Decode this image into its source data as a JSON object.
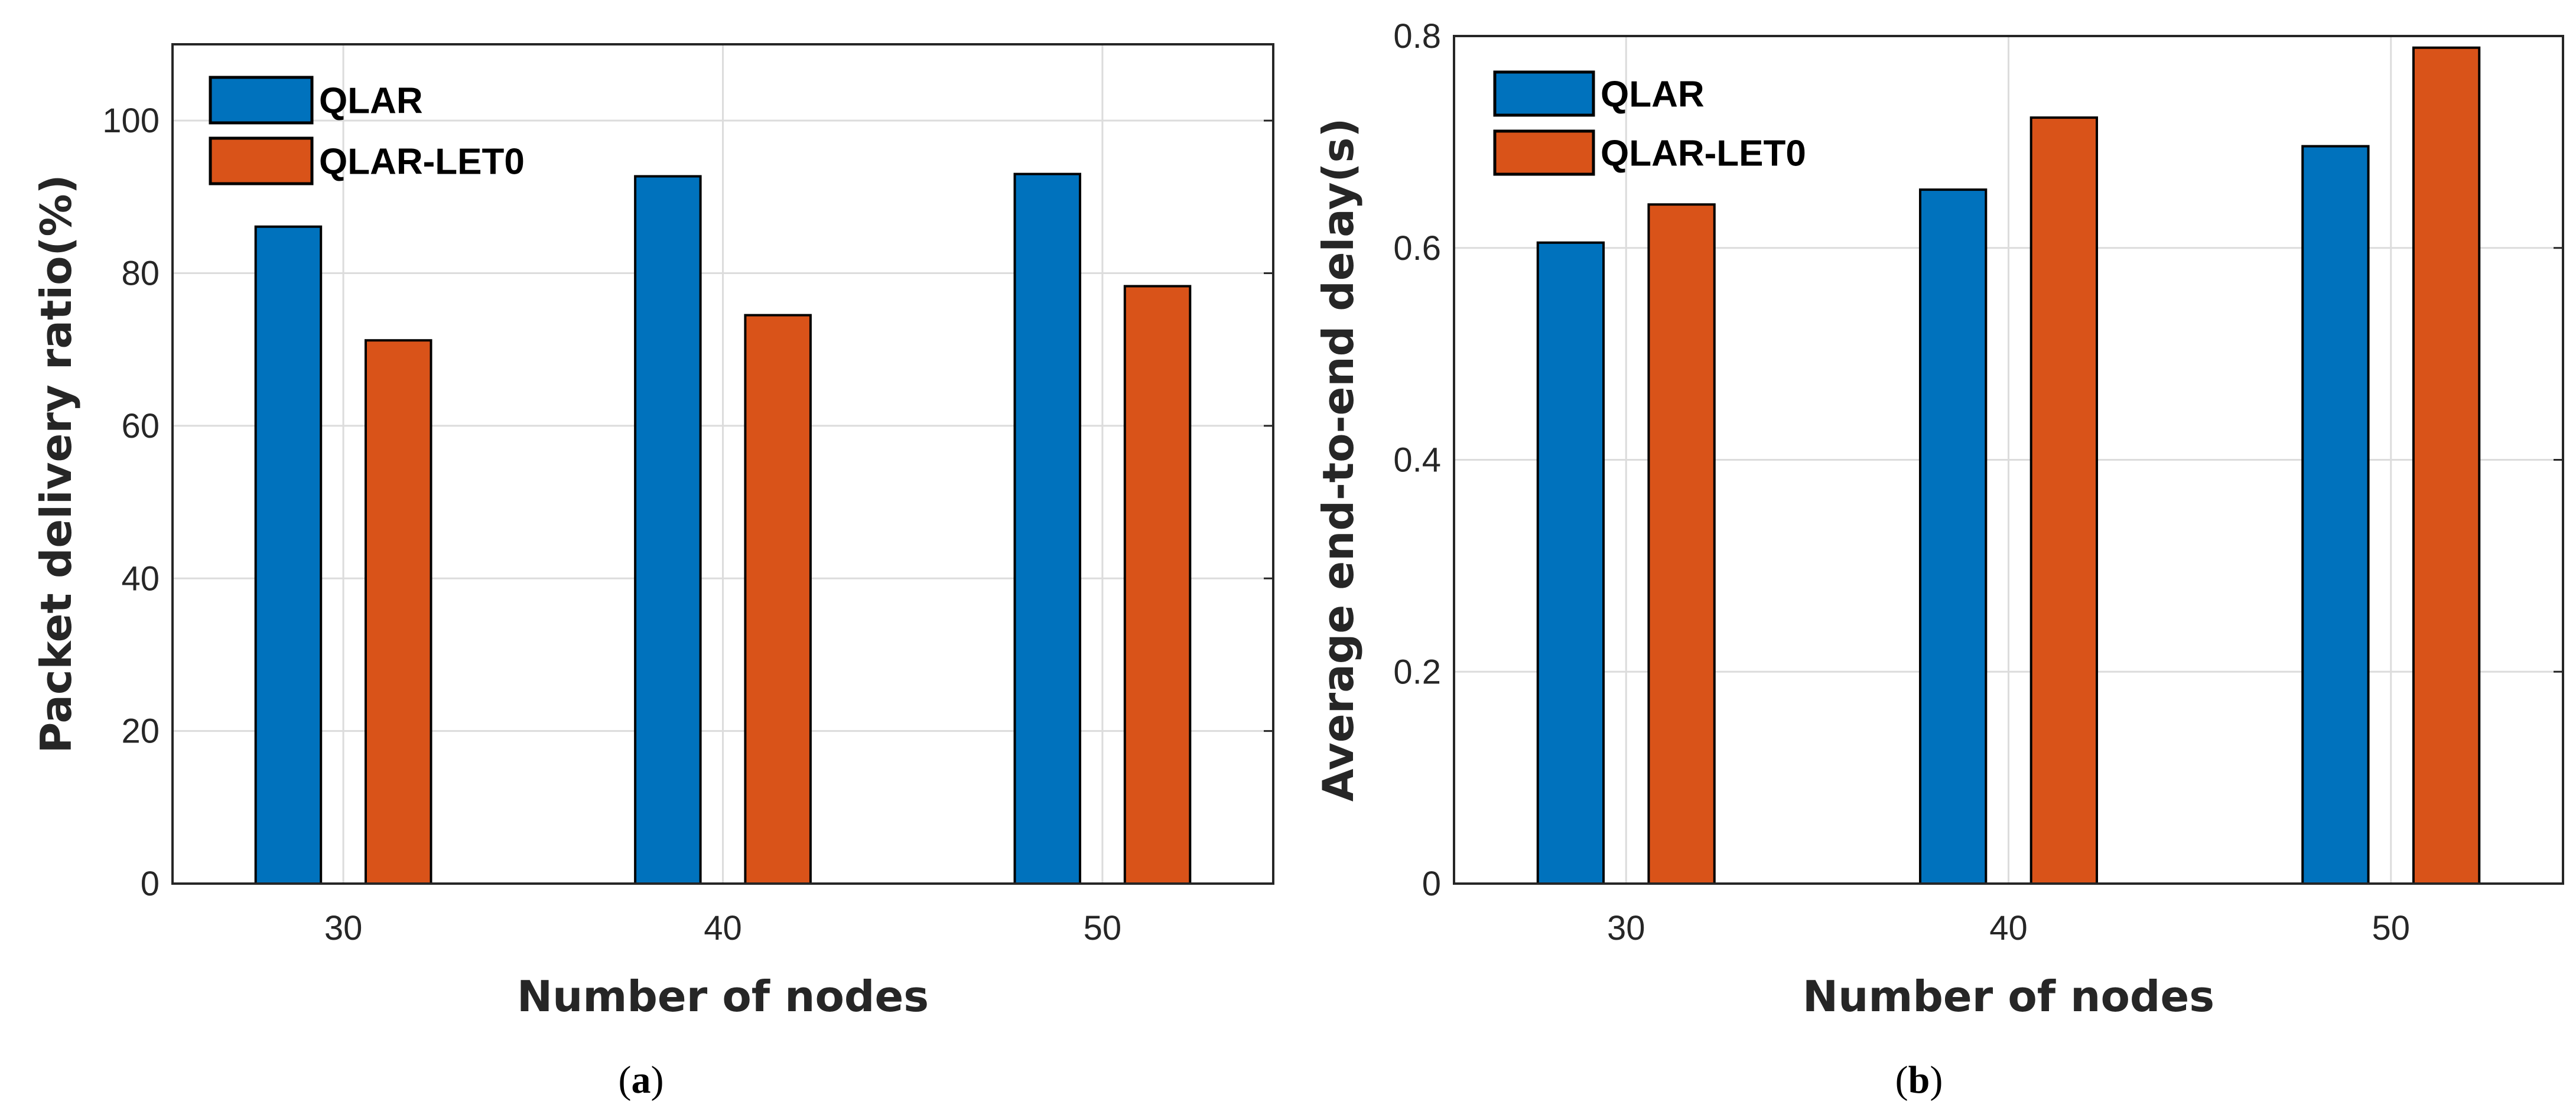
{
  "chart_data": [
    {
      "type": "bar",
      "caption": "(a)",
      "caption_bold": "a",
      "xlabel": "Number of nodes",
      "ylabel": "Packet delivery ratio(%)",
      "categories": [
        "30",
        "40",
        "50"
      ],
      "x": [
        30,
        40,
        50
      ],
      "xlim": [
        25.5,
        54.5
      ],
      "ylim": [
        0,
        110
      ],
      "yticks": [
        0,
        20,
        40,
        60,
        80,
        100
      ],
      "grid": true,
      "legend": "top-left",
      "series": [
        {
          "name": "QLAR",
          "color": "#0072BD",
          "values": [
            86.1,
            92.7,
            93.0
          ]
        },
        {
          "name": "QLAR-LET0",
          "color": "#D95319",
          "values": [
            71.2,
            74.5,
            78.3
          ]
        }
      ]
    },
    {
      "type": "bar",
      "caption": "(b)",
      "caption_bold": "b",
      "xlabel": "Number of nodes",
      "ylabel": "Average end-to-end delay(s)",
      "categories": [
        "30",
        "40",
        "50"
      ],
      "x": [
        30,
        40,
        50
      ],
      "xlim": [
        25.5,
        54.5
      ],
      "ylim": [
        0,
        0.8
      ],
      "yticks": [
        0,
        0.2,
        0.4,
        0.6,
        0.8
      ],
      "grid": true,
      "legend": "top-left",
      "series": [
        {
          "name": "QLAR",
          "color": "#0072BD",
          "values": [
            0.605,
            0.655,
            0.696
          ]
        },
        {
          "name": "QLAR-LET0",
          "color": "#D95319",
          "values": [
            0.641,
            0.723,
            0.789
          ]
        }
      ]
    }
  ]
}
